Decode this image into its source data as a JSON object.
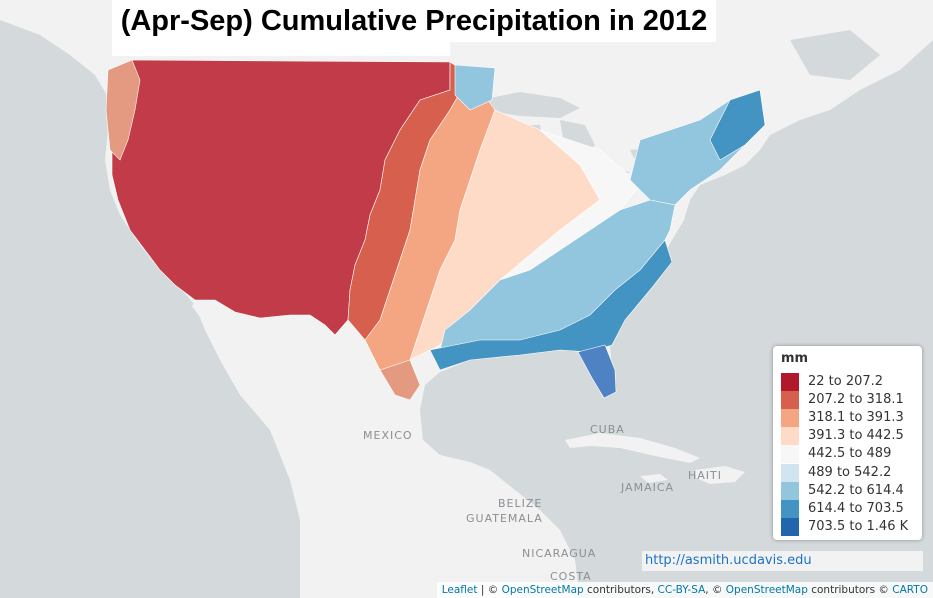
{
  "title": "(Apr-Sep) Cumulative Precipitation in 2012",
  "map_labels": {
    "mexico": "MEXICO",
    "cuba": "CUBA",
    "haiti": "HAITI",
    "jamaica": "JAMAICA",
    "belize": "BELIZE",
    "guatemala": "GUATEMALA",
    "nicaragua": "NICARAGUA",
    "costa": "COSTA"
  },
  "legend": {
    "title": "mm",
    "items": [
      {
        "label": "22 to 207.2",
        "color": "#b2182b"
      },
      {
        "label": "207.2 to 318.1",
        "color": "#d6604d"
      },
      {
        "label": "318.1 to 391.3",
        "color": "#f4a582"
      },
      {
        "label": "391.3 to 442.5",
        "color": "#fddbc7"
      },
      {
        "label": "442.5 to 489",
        "color": "#f7f7f7"
      },
      {
        "label": "489 to 542.2",
        "color": "#d1e5f0"
      },
      {
        "label": "542.2 to 614.4",
        "color": "#92c5de"
      },
      {
        "label": "614.4 to 703.5",
        "color": "#4393c3"
      },
      {
        "label": "703.5 to 1.46 K",
        "color": "#2166ac"
      }
    ]
  },
  "source_url": "http://asmith.ucdavis.edu",
  "attribution": {
    "leaflet": "Leaflet",
    "sep1": " | © ",
    "osm1": "OpenStreetMap",
    "contrib1": " contributors, ",
    "ccbysa": "CC-BY-SA",
    "sep2": ", © ",
    "osm2": "OpenStreetMap",
    "contrib2": " contributors © ",
    "carto": "CARTO"
  },
  "colors": {
    "water": "#d4dadc",
    "land": "#f2f2f2",
    "border": "#ffffff"
  }
}
